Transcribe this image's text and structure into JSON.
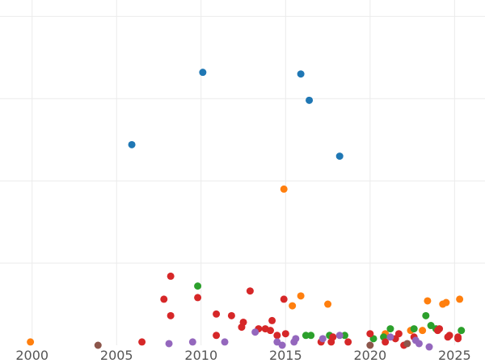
{
  "chart_data": {
    "type": "scatter",
    "title": "",
    "xlabel": "",
    "ylabel": "",
    "xlim": [
      1998.1,
      2026.8
    ],
    "ylim": [
      0,
      21
    ],
    "x_ticks": [
      2000,
      2005,
      2010,
      2015,
      2020,
      2025
    ],
    "x_tick_labels": [
      "2000",
      "2005",
      "2010",
      "2015",
      "2020",
      "2025"
    ],
    "y_gridlines": [
      5,
      10,
      15,
      20
    ],
    "grid": true,
    "legend": "none",
    "series": [
      {
        "color": "#1f77b4",
        "points": [
          {
            "x": 2005.9,
            "y": 12.2
          },
          {
            "x": 2010.1,
            "y": 16.6
          },
          {
            "x": 2015.9,
            "y": 16.5
          },
          {
            "x": 2016.4,
            "y": 14.9
          },
          {
            "x": 2018.2,
            "y": 11.5
          }
        ]
      },
      {
        "color": "#ff7f0e",
        "points": [
          {
            "x": 1999.9,
            "y": 0.2
          },
          {
            "x": 2014.9,
            "y": 9.5
          },
          {
            "x": 2015.4,
            "y": 2.4
          },
          {
            "x": 2015.9,
            "y": 3.0
          },
          {
            "x": 2017.5,
            "y": 2.5
          },
          {
            "x": 2020.9,
            "y": 0.7
          },
          {
            "x": 2022.4,
            "y": 0.9
          },
          {
            "x": 2023.1,
            "y": 0.9
          },
          {
            "x": 2023.4,
            "y": 2.7
          },
          {
            "x": 2024.3,
            "y": 2.5
          },
          {
            "x": 2024.5,
            "y": 2.6
          },
          {
            "x": 2025.3,
            "y": 2.8
          }
        ]
      },
      {
        "color": "#2ca02c",
        "points": [
          {
            "x": 2009.8,
            "y": 3.6
          },
          {
            "x": 2016.2,
            "y": 0.6
          },
          {
            "x": 2016.5,
            "y": 0.6
          },
          {
            "x": 2017.6,
            "y": 0.6
          },
          {
            "x": 2018.5,
            "y": 0.6
          },
          {
            "x": 2020.2,
            "y": 0.4
          },
          {
            "x": 2020.8,
            "y": 0.5
          },
          {
            "x": 2021.2,
            "y": 1.0
          },
          {
            "x": 2022.6,
            "y": 1.0
          },
          {
            "x": 2023.3,
            "y": 1.8
          },
          {
            "x": 2023.6,
            "y": 1.2
          },
          {
            "x": 2023.9,
            "y": 1.0
          },
          {
            "x": 2025.4,
            "y": 0.9
          }
        ]
      },
      {
        "color": "#d62728",
        "points": [
          {
            "x": 2006.5,
            "y": 0.2
          },
          {
            "x": 2007.8,
            "y": 2.8
          },
          {
            "x": 2008.2,
            "y": 4.2
          },
          {
            "x": 2008.2,
            "y": 1.8
          },
          {
            "x": 2009.8,
            "y": 2.9
          },
          {
            "x": 2010.9,
            "y": 1.9
          },
          {
            "x": 2010.9,
            "y": 0.6
          },
          {
            "x": 2011.8,
            "y": 1.8
          },
          {
            "x": 2012.4,
            "y": 1.1
          },
          {
            "x": 2012.5,
            "y": 1.4
          },
          {
            "x": 2012.9,
            "y": 3.3
          },
          {
            "x": 2013.4,
            "y": 1.0
          },
          {
            "x": 2013.8,
            "y": 1.0
          },
          {
            "x": 2014.1,
            "y": 0.9
          },
          {
            "x": 2014.2,
            "y": 1.5
          },
          {
            "x": 2014.5,
            "y": 0.6
          },
          {
            "x": 2014.9,
            "y": 2.8
          },
          {
            "x": 2015.0,
            "y": 0.7
          },
          {
            "x": 2017.1,
            "y": 0.2
          },
          {
            "x": 2017.7,
            "y": 0.2
          },
          {
            "x": 2017.8,
            "y": 0.5
          },
          {
            "x": 2018.7,
            "y": 0.2
          },
          {
            "x": 2020.0,
            "y": 0.7
          },
          {
            "x": 2020.9,
            "y": 0.2
          },
          {
            "x": 2021.5,
            "y": 0.4
          },
          {
            "x": 2021.7,
            "y": 0.7
          },
          {
            "x": 2022.0,
            "y": 0.0
          },
          {
            "x": 2022.6,
            "y": 0.5
          },
          {
            "x": 2024.0,
            "y": 0.9
          },
          {
            "x": 2024.1,
            "y": 1.0
          },
          {
            "x": 2024.6,
            "y": 0.5
          },
          {
            "x": 2024.7,
            "y": 0.6
          },
          {
            "x": 2025.2,
            "y": 0.4
          },
          {
            "x": 2025.2,
            "y": 0.5
          }
        ]
      },
      {
        "color": "#9467bd",
        "points": [
          {
            "x": 2008.1,
            "y": 0.1
          },
          {
            "x": 2009.5,
            "y": 0.2
          },
          {
            "x": 2011.4,
            "y": 0.2
          },
          {
            "x": 2013.2,
            "y": 0.8
          },
          {
            "x": 2014.5,
            "y": 0.2
          },
          {
            "x": 2014.8,
            "y": 0.0
          },
          {
            "x": 2015.5,
            "y": 0.2
          },
          {
            "x": 2015.6,
            "y": 0.4
          },
          {
            "x": 2017.2,
            "y": 0.4
          },
          {
            "x": 2018.2,
            "y": 0.6
          },
          {
            "x": 2021.2,
            "y": 0.5
          },
          {
            "x": 2022.7,
            "y": 0.3
          },
          {
            "x": 2022.9,
            "y": 0.1
          },
          {
            "x": 2023.5,
            "y": -0.1
          }
        ]
      },
      {
        "color": "#8c564b",
        "points": [
          {
            "x": 2003.9,
            "y": 0.0
          },
          {
            "x": 2020.0,
            "y": 0.0
          },
          {
            "x": 2022.2,
            "y": 0.1
          }
        ]
      }
    ]
  }
}
